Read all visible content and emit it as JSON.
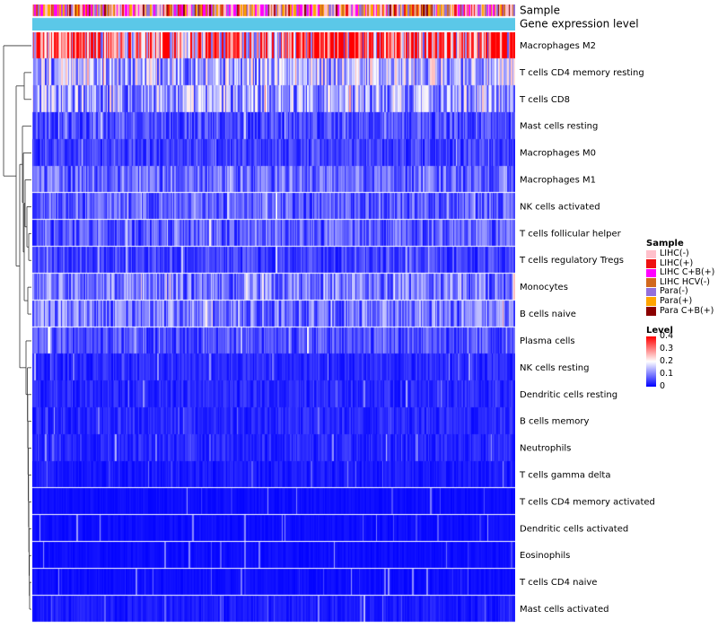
{
  "chart_data": {
    "type": "heatmap",
    "title": "",
    "annotations": [
      {
        "name": "Sample",
        "type": "categorical"
      },
      {
        "name": "Gene expression level",
        "type": "continuous",
        "color": "#5bc8e8"
      }
    ],
    "rows": [
      {
        "label": "Macrophages M2",
        "mean_level": 0.3
      },
      {
        "label": "T cells CD4 memory resting",
        "mean_level": 0.14
      },
      {
        "label": "T cells CD8",
        "mean_level": 0.13
      },
      {
        "label": "Mast cells resting",
        "mean_level": 0.06
      },
      {
        "label": "Macrophages M0",
        "mean_level": 0.05
      },
      {
        "label": "Macrophages M1",
        "mean_level": 0.08
      },
      {
        "label": "NK cells activated",
        "mean_level": 0.07
      },
      {
        "label": "T cells follicular helper",
        "mean_level": 0.07
      },
      {
        "label": "T cells regulatory  Tregs",
        "mean_level": 0.05
      },
      {
        "label": "Monocytes",
        "mean_level": 0.09
      },
      {
        "label": "B cells naive",
        "mean_level": 0.09
      },
      {
        "label": "Plasma cells",
        "mean_level": 0.06
      },
      {
        "label": "NK cells resting",
        "mean_level": 0.03
      },
      {
        "label": "Dendritic cells resting",
        "mean_level": 0.03
      },
      {
        "label": "B cells memory",
        "mean_level": 0.03
      },
      {
        "label": "Neutrophils",
        "mean_level": 0.03
      },
      {
        "label": "T cells gamma delta",
        "mean_level": 0.02
      },
      {
        "label": "T cells CD4 memory activated",
        "mean_level": 0.01
      },
      {
        "label": "Dendritic cells activated",
        "mean_level": 0.01
      },
      {
        "label": "Eosinophils",
        "mean_level": 0.01
      },
      {
        "label": "T cells CD4 naive",
        "mean_level": 0.01
      },
      {
        "label": "Mast cells activated",
        "mean_level": 0.02
      }
    ],
    "n_samples": 400,
    "sample_groups": [
      {
        "label": "LIHC(-)",
        "color": "#ffc0cb",
        "weight": 0.28
      },
      {
        "label": "LIHC(+)",
        "color": "#ee1111",
        "weight": 0.08
      },
      {
        "label": "LIHC C+B(+)",
        "color": "#ff00ff",
        "weight": 0.18
      },
      {
        "label": "LIHC HCV(-)",
        "color": "#d2691e",
        "weight": 0.1
      },
      {
        "label": "Para(-)",
        "color": "#9370db",
        "weight": 0.14
      },
      {
        "label": "Para(+)",
        "color": "#ffa500",
        "weight": 0.14
      },
      {
        "label": "Para C+B(+)",
        "color": "#8b0000",
        "weight": 0.08
      }
    ],
    "legend_sample_title": "Sample",
    "legend_level_title": "Level",
    "level_ticks": [
      "0.4",
      "0.3",
      "0.2",
      "0.1",
      "0"
    ],
    "level_range": [
      0,
      0.4
    ],
    "color_scale": {
      "low": "#0000ff",
      "mid": "#ffffff",
      "high": "#ff0000"
    }
  }
}
